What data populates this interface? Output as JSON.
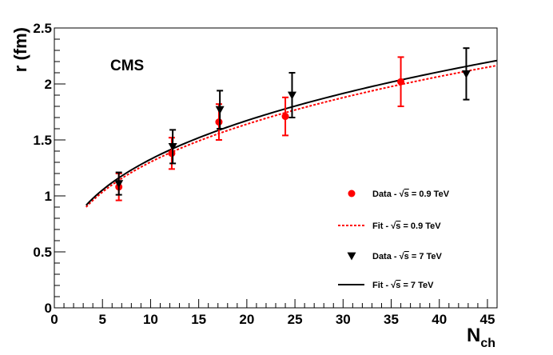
{
  "chart_data": {
    "type": "scatter",
    "label": "CMS",
    "xlabel": "N",
    "xlabel_sub": "ch",
    "ylabel": "r (fm)",
    "xlim": [
      0,
      46
    ],
    "ylim": [
      0,
      2.5
    ],
    "xticks": [
      "0",
      "5",
      "10",
      "15",
      "20",
      "25",
      "30",
      "35",
      "40",
      "45"
    ],
    "yticks": [
      "0",
      "0.5",
      "1",
      "1.5",
      "2",
      "2.5"
    ],
    "series": [
      {
        "name": "Data - √s = 0.9 TeV",
        "legend_prefix": "Data - ",
        "legend_sqrt": "s",
        "legend_suffix": " = 0.9 TeV",
        "kind": "points",
        "marker": "circle",
        "color": "#ff0000",
        "points": [
          {
            "x": 6.7,
            "y": 1.08,
            "err": 0.12
          },
          {
            "x": 12.2,
            "y": 1.38,
            "err": 0.14
          },
          {
            "x": 17.1,
            "y": 1.66,
            "err": 0.16
          },
          {
            "x": 24.0,
            "y": 1.71,
            "err": 0.17
          },
          {
            "x": 36.0,
            "y": 2.02,
            "err": 0.22
          }
        ]
      },
      {
        "name": "Fit - √s = 0.9 TeV",
        "legend_prefix": "Fit - ",
        "legend_sqrt": "s",
        "legend_suffix": " = 0.9 TeV",
        "kind": "line",
        "dash": true,
        "color": "#ff0000",
        "a": 0.605,
        "b": 0.333,
        "x_range": [
          3.3,
          46
        ]
      },
      {
        "name": "Data - √s = 7 TeV",
        "legend_prefix": "Data - ",
        "legend_sqrt": "s",
        "legend_suffix": " = 7 TeV",
        "kind": "points",
        "marker": "triangle-down",
        "color": "#000000",
        "points": [
          {
            "x": 6.7,
            "y": 1.11,
            "err": 0.1
          },
          {
            "x": 12.3,
            "y": 1.44,
            "err": 0.15
          },
          {
            "x": 17.2,
            "y": 1.77,
            "err": 0.17
          },
          {
            "x": 24.7,
            "y": 1.9,
            "err": 0.2
          },
          {
            "x": 42.8,
            "y": 2.09,
            "err": 0.23
          }
        ]
      },
      {
        "name": "Fit - √s = 7 TeV",
        "legend_prefix": "Fit - ",
        "legend_sqrt": "s",
        "legend_suffix": " = 7 TeV",
        "kind": "line",
        "dash": false,
        "color": "#000000",
        "a": 0.615,
        "b": 0.334,
        "x_range": [
          3.3,
          46
        ]
      }
    ]
  }
}
